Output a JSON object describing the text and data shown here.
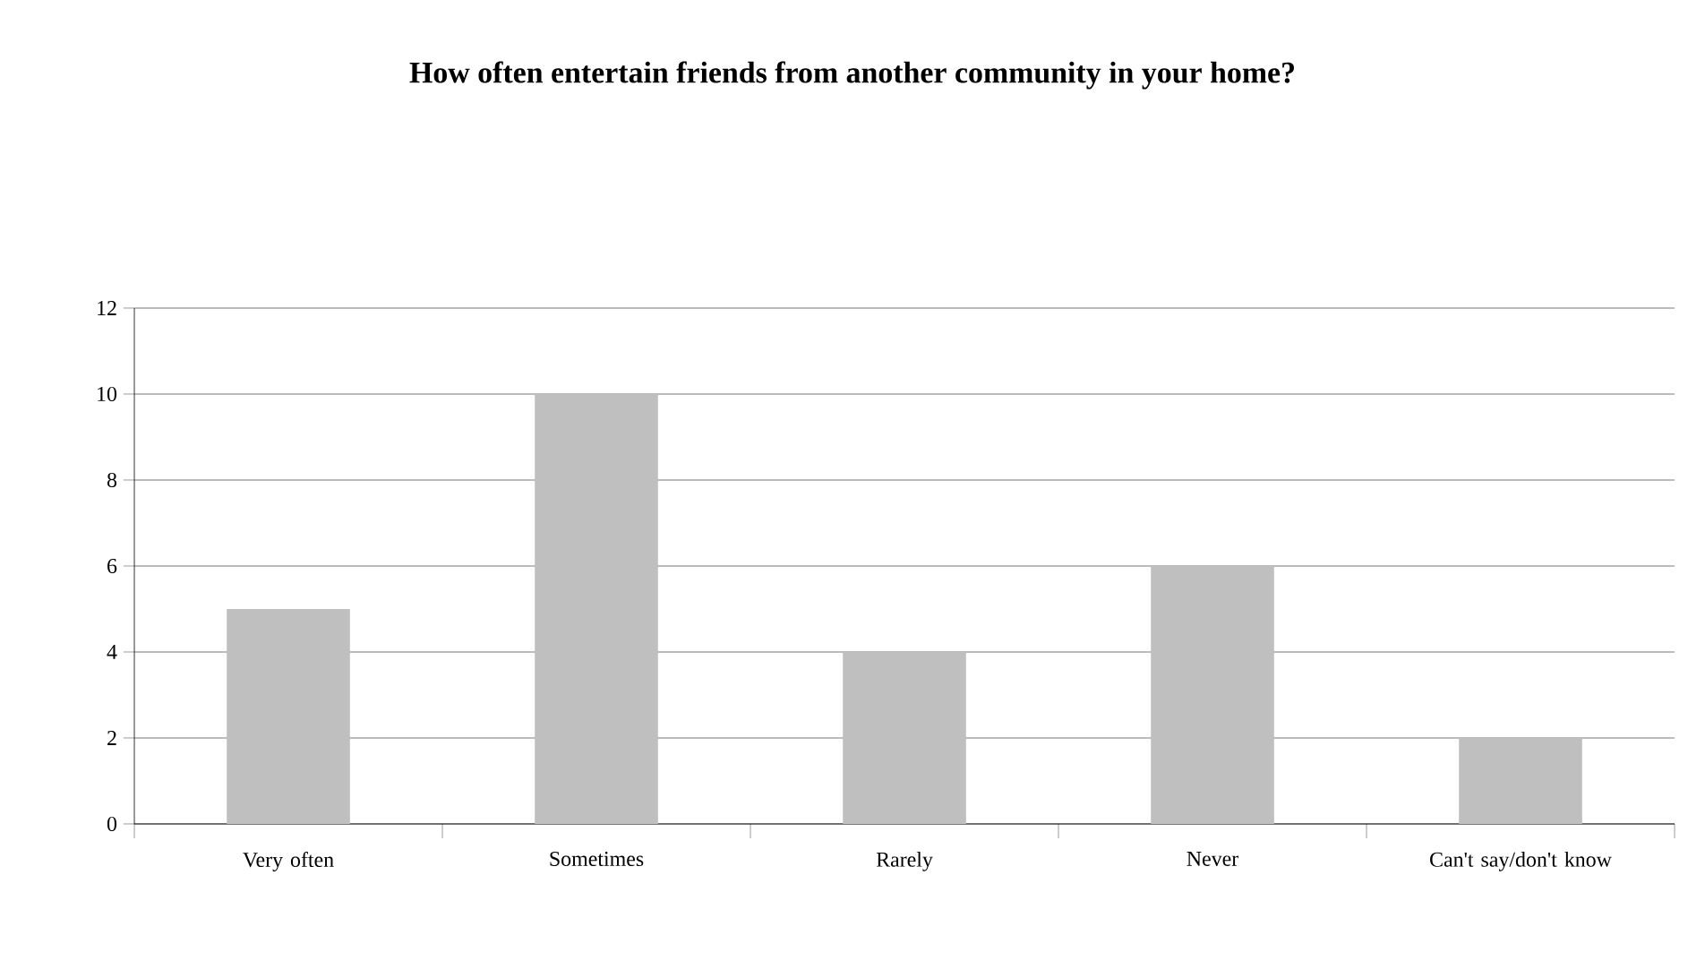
{
  "chart_data": {
    "type": "bar",
    "title": "How often entertain friends from another community in your home?",
    "categories": [
      "Very often",
      "Sometimes",
      "Rarely",
      "Never",
      "Can't say/don't know"
    ],
    "values": [
      5,
      10,
      4,
      6,
      2
    ],
    "color": "#bfbfbf",
    "ylim": [
      0,
      12
    ],
    "yticks": [
      0,
      2,
      4,
      6,
      8,
      10,
      12
    ],
    "grid": "y"
  }
}
